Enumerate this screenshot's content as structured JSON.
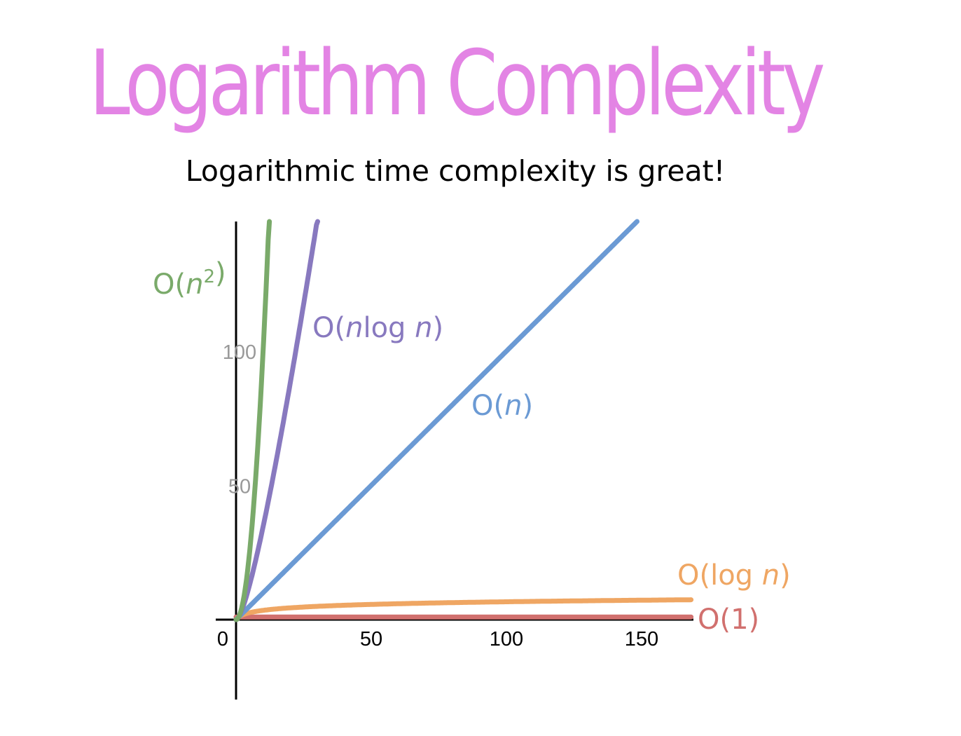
{
  "title": "Logarithm Complexity",
  "subtitle": "Logarithmic time complexity is great!",
  "colors": {
    "title": "#e384e4",
    "axis": "#000000",
    "tick_label": "#999999",
    "origin_label": "#000000"
  },
  "chart_data": {
    "type": "line",
    "title": "",
    "xlabel": "",
    "ylabel": "",
    "xlim": [
      0,
      170
    ],
    "ylim": [
      0,
      120
    ],
    "grid": false,
    "legend": "none",
    "origin_label": "0",
    "x_ticks": [
      50,
      100,
      150
    ],
    "y_ticks": [
      50,
      100
    ],
    "series": [
      {
        "name": "O(1)",
        "label_parts": [
          {
            "t": "O(1)",
            "i": false
          }
        ],
        "function": "constant",
        "color": "#d1706e"
      },
      {
        "name": "O(log n)",
        "label_parts": [
          {
            "t": "O(log ",
            "i": false
          },
          {
            "t": "n",
            "i": true
          },
          {
            "t": ")",
            "i": false
          }
        ],
        "function": "log n",
        "color": "#efa663"
      },
      {
        "name": "O(n)",
        "label_parts": [
          {
            "t": "O(",
            "i": false
          },
          {
            "t": "n",
            "i": true
          },
          {
            "t": ")",
            "i": false
          }
        ],
        "function": "n",
        "color": "#6b9ad4"
      },
      {
        "name": "O(nlog n)",
        "label_parts": [
          {
            "t": "O(",
            "i": false
          },
          {
            "t": "n",
            "i": true
          },
          {
            "t": "log ",
            "i": false
          },
          {
            "t": "n",
            "i": true
          },
          {
            "t": ")",
            "i": false
          }
        ],
        "function": "n log n",
        "color": "#8879bf"
      },
      {
        "name": "O(n2)",
        "label_parts": [
          {
            "t": "O(",
            "i": false
          },
          {
            "t": "n",
            "i": true
          },
          {
            "t": "2",
            "i": false,
            "sup": true
          },
          {
            "t": ")",
            "i": false
          }
        ],
        "function": "n^2",
        "color": "#7aaa6a"
      }
    ]
  }
}
